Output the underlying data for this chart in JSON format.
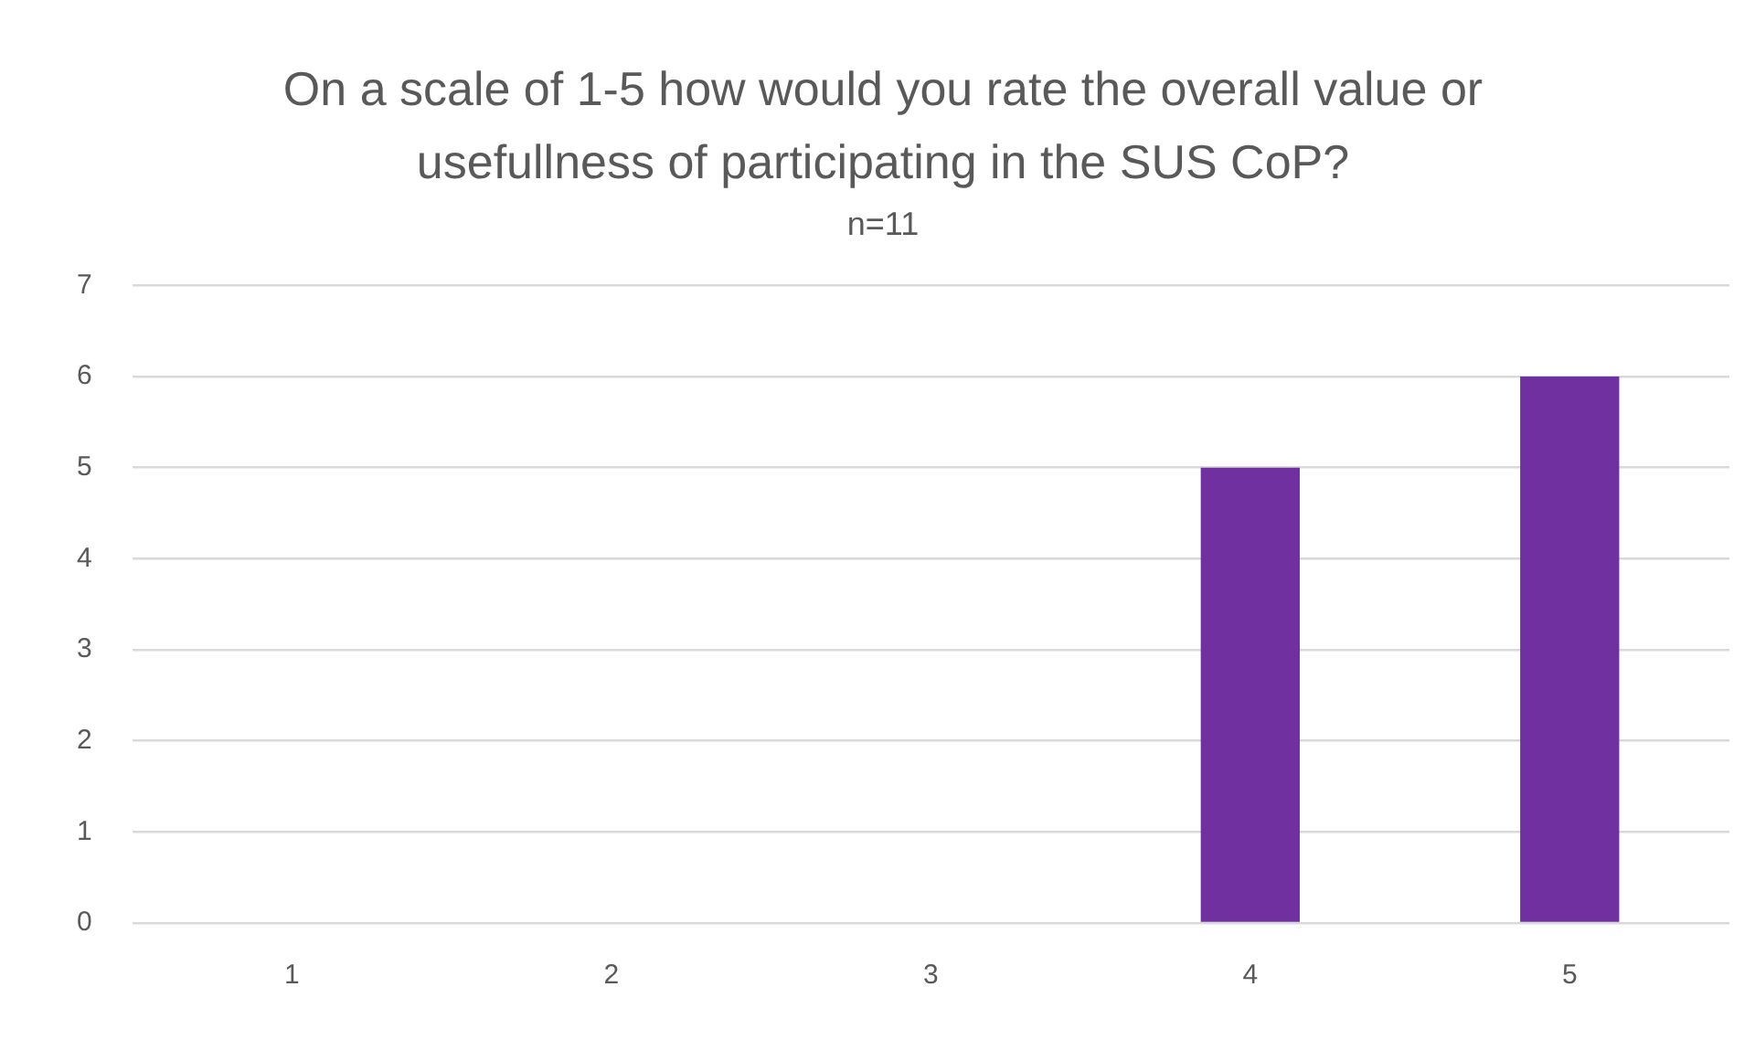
{
  "chart_data": {
    "type": "bar",
    "title": "On a scale of 1-5 how would you rate the overall value or usefullness of participating in the SUS CoP?",
    "subtitle": "n=11",
    "categories": [
      "1",
      "2",
      "3",
      "4",
      "5"
    ],
    "values": [
      0,
      0,
      0,
      5,
      6
    ],
    "color": "#7030a0",
    "ylim": [
      0,
      7
    ],
    "yticks": [
      0,
      1,
      2,
      3,
      4,
      5,
      6,
      7
    ],
    "grid": "y",
    "legend": false
  }
}
